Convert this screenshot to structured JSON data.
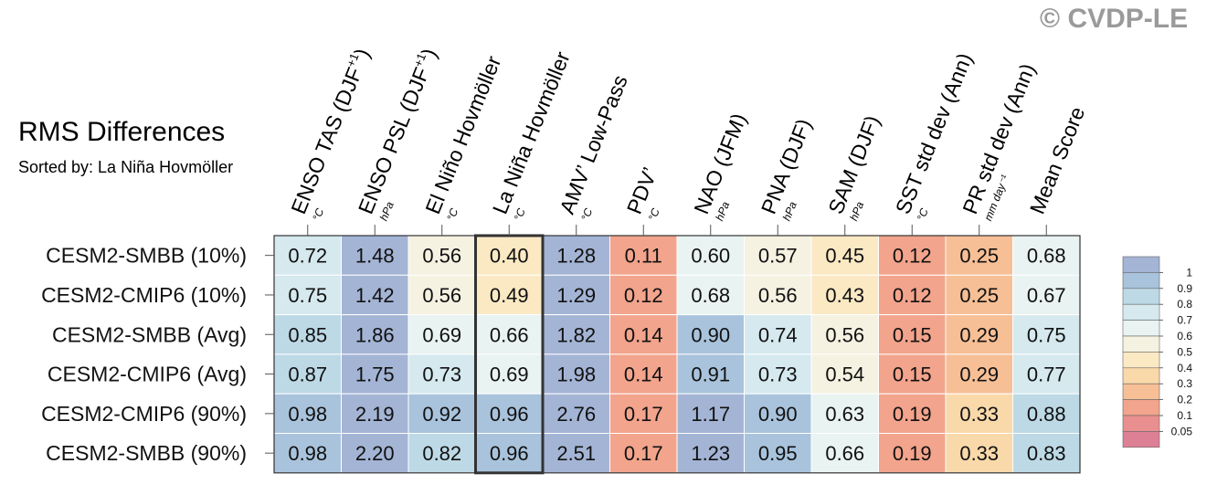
{
  "watermark": "© CVDP-LE",
  "title": "RMS Differences",
  "subtitle": "Sorted by: La Niña Hovmöller",
  "chart_data": {
    "type": "heatmap",
    "columns": [
      {
        "label": "ENSO TAS (DJF",
        "sup": "+1",
        "close": ")",
        "unit": "°C"
      },
      {
        "label": "ENSO PSL (DJF",
        "sup": "+1",
        "close": ")",
        "unit": "hPa"
      },
      {
        "label": "El Niño Hovmöller",
        "sup": "",
        "close": "",
        "unit": "°C"
      },
      {
        "label": "La Niña Hovmöller",
        "sup": "",
        "close": "",
        "unit": "°C"
      },
      {
        "label": "AMV’ Low-Pass",
        "sup": "",
        "close": "",
        "unit": "°C"
      },
      {
        "label": "PDV’",
        "sup": "",
        "close": "",
        "unit": "°C"
      },
      {
        "label": "NAO (JFM)",
        "sup": "",
        "close": "",
        "unit": "hPa"
      },
      {
        "label": "PNA (DJF)",
        "sup": "",
        "close": "",
        "unit": "hPa"
      },
      {
        "label": "SAM (DJF)",
        "sup": "",
        "close": "",
        "unit": "hPa"
      },
      {
        "label": "SST std dev (Ann)",
        "sup": "",
        "close": "",
        "unit": "°C"
      },
      {
        "label": "PR std dev (Ann)",
        "sup": "",
        "close": "",
        "unit": "mm day⁻¹"
      },
      {
        "label": "Mean Score",
        "sup": "",
        "close": "",
        "unit": ""
      }
    ],
    "rows": [
      {
        "label": "CESM2-SMBB (10%)",
        "values": [
          "0.72",
          "1.48",
          "0.56",
          "0.40",
          "1.28",
          "0.11",
          "0.60",
          "0.57",
          "0.45",
          "0.12",
          "0.25",
          "0.68"
        ]
      },
      {
        "label": "CESM2-CMIP6 (10%)",
        "values": [
          "0.75",
          "1.42",
          "0.56",
          "0.49",
          "1.29",
          "0.12",
          "0.68",
          "0.56",
          "0.43",
          "0.12",
          "0.25",
          "0.67"
        ]
      },
      {
        "label": "CESM2-SMBB (Avg)",
        "values": [
          "0.85",
          "1.86",
          "0.69",
          "0.66",
          "1.82",
          "0.14",
          "0.90",
          "0.74",
          "0.56",
          "0.15",
          "0.29",
          "0.75"
        ]
      },
      {
        "label": "CESM2-CMIP6 (Avg)",
        "values": [
          "0.87",
          "1.75",
          "0.73",
          "0.69",
          "1.98",
          "0.14",
          "0.91",
          "0.73",
          "0.54",
          "0.15",
          "0.29",
          "0.77"
        ]
      },
      {
        "label": "CESM2-CMIP6 (90%)",
        "values": [
          "0.98",
          "2.19",
          "0.92",
          "0.96",
          "2.76",
          "0.17",
          "1.17",
          "0.90",
          "0.63",
          "0.19",
          "0.33",
          "0.88"
        ]
      },
      {
        "label": "CESM2-SMBB (90%)",
        "values": [
          "0.98",
          "2.20",
          "0.82",
          "0.96",
          "2.51",
          "0.17",
          "1.23",
          "0.95",
          "0.66",
          "0.19",
          "0.33",
          "0.83"
        ]
      }
    ],
    "highlight_column": 3,
    "colorbar": {
      "labels": [
        "1",
        "0.9",
        "0.8",
        "0.7",
        "0.6",
        "0.5",
        "0.4",
        "0.3",
        "0.2",
        "0.1",
        "0.05"
      ],
      "colors": [
        "#a4b4d5",
        "#a9c3dc",
        "#bdd9e6",
        "#d5e9ef",
        "#e9f3f2",
        "#f5f2e2",
        "#fbe9c4",
        "#f9d9aa",
        "#f6bf95",
        "#f2a48c",
        "#e98f8f",
        "#dd8096"
      ]
    }
  }
}
